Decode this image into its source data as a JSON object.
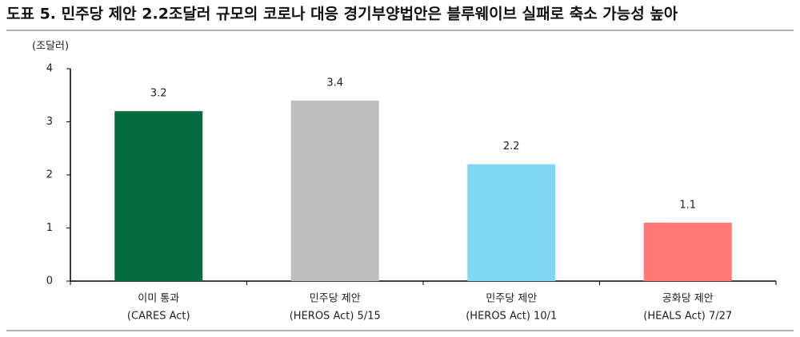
{
  "chart_data": {
    "type": "bar",
    "title": "도표 5. 민주당 제안 2.2조달러 규모의 코로나 대응 경기부양법안은 블루웨이브 실패로 축소 가능성 높아",
    "y_label": "(조달러)",
    "categories": [
      [
        "이미 통과",
        "(CARES Act)"
      ],
      [
        "민주당 제안",
        "(HEROS Act) 5/15"
      ],
      [
        "민주당 제안",
        "(HEROS Act) 10/1"
      ],
      [
        "공화당 제안",
        "(HEALS Act) 7/27"
      ]
    ],
    "values": [
      3.2,
      3.4,
      2.2,
      1.1
    ],
    "colors": [
      "#066c3f",
      "#bebebe",
      "#7fd7f5",
      "#ff7777"
    ],
    "ylim": [
      0,
      4
    ],
    "yticks": [
      0,
      1,
      2,
      3,
      4
    ],
    "grid": false
  }
}
